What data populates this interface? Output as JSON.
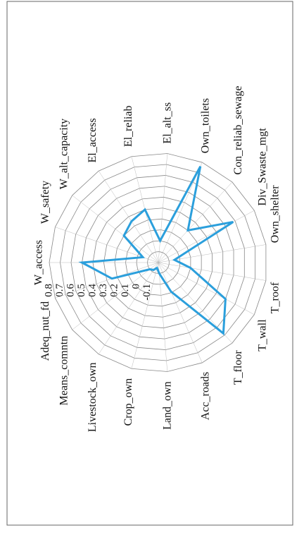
{
  "chart_data": {
    "type": "radar",
    "categories": [
      "W_access",
      "W_safety",
      "W_alt_capacity",
      "El_access",
      "El_reliab",
      "El_alt_ss",
      "Own_toilets",
      "Con_reliab_sewage",
      "Div_Swaste_mgt",
      "Own_shelter",
      "T_roof",
      "T_wall",
      "T_floor",
      "Acc_roads",
      "Land_own",
      "Crop_own",
      "Livestock_own",
      "Means_comntn",
      "Adeq_nut_fd"
    ],
    "series": [
      {
        "color": "#2b9fdc",
        "values": [
          0.5,
          -0.05,
          0.2,
          0.25,
          0.3,
          0.0,
          0.76,
          0.2,
          0.58,
          -0.05,
          0.1,
          0.5,
          0.68,
          0.09,
          -0.1,
          -0.15,
          -0.12,
          -0.1,
          0.25
        ]
      }
    ],
    "ylim": [
      -0.2,
      0.8
    ],
    "yticks": [
      -0.1,
      0.0,
      0.1,
      0.2,
      0.3,
      0.4,
      0.5,
      0.6,
      0.7,
      0.8
    ]
  }
}
